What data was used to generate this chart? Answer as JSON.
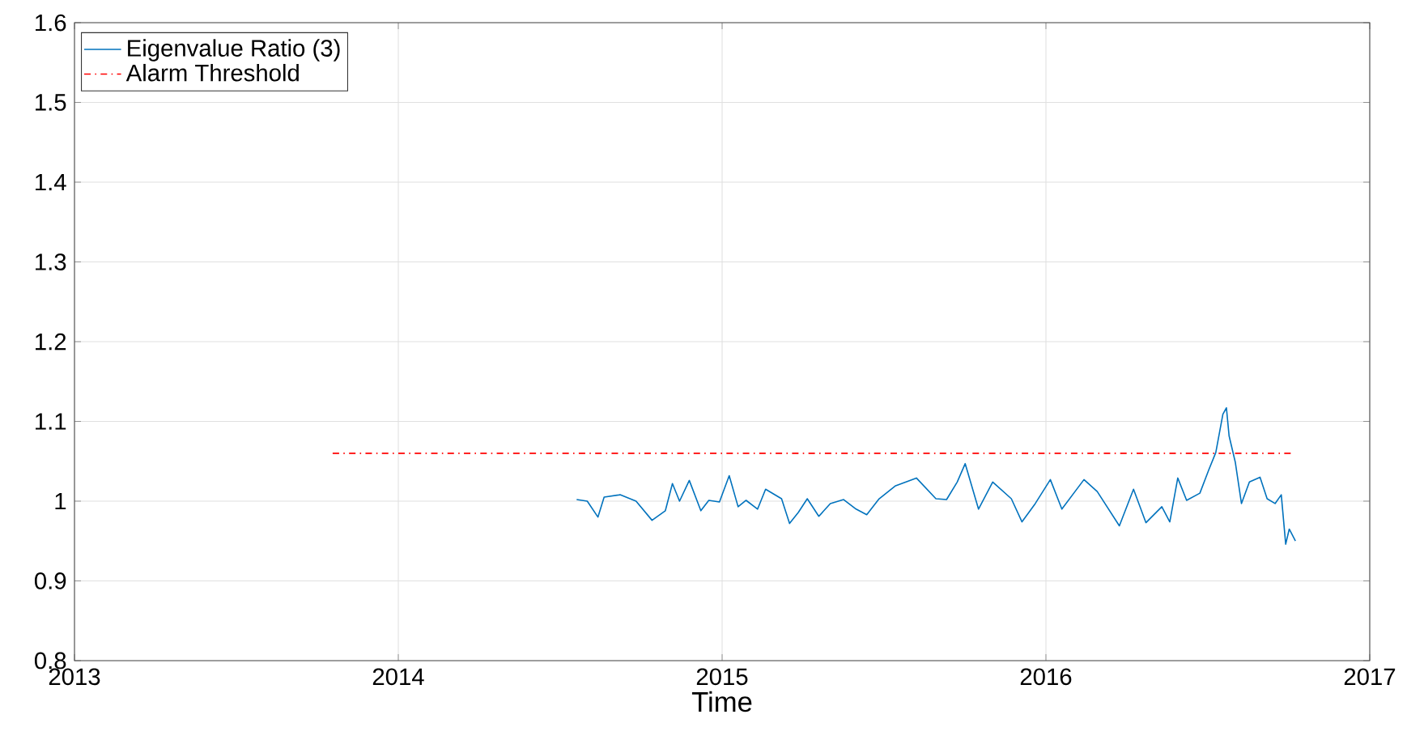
{
  "chart_data": {
    "type": "line",
    "xlabel": "Time",
    "xlim": [
      "2013",
      "2017"
    ],
    "xticks": [
      "2013",
      "2014",
      "2015",
      "2016",
      "2017"
    ],
    "ylim": [
      0.8,
      1.6
    ],
    "yticks": [
      0.8,
      0.9,
      1,
      1.1,
      1.2,
      1.3,
      1.4,
      1.5,
      1.6
    ],
    "grid": true,
    "legend": "top left",
    "marker": "none",
    "series": [
      {
        "name": "Eigenvalue Ratio (3)",
        "color": "#0072bd",
        "line_style": "solid",
        "x": [
          "2014-07-21",
          "2014-08-02",
          "2014-08-14",
          "2014-08-21",
          "2014-09-08",
          "2014-09-26",
          "2014-10-14",
          "2014-10-29",
          "2014-11-06",
          "2014-11-14",
          "2014-11-25",
          "2014-12-08",
          "2014-12-17",
          "2014-12-29",
          "2015-01-09",
          "2015-01-19",
          "2015-01-28",
          "2015-02-10",
          "2015-02-19",
          "2015-03-09",
          "2015-03-18",
          "2015-03-28",
          "2015-04-07",
          "2015-04-20",
          "2015-05-03",
          "2015-05-18",
          "2015-06-01",
          "2015-06-13",
          "2015-06-27",
          "2015-07-15",
          "2015-08-08",
          "2015-08-30",
          "2015-09-11",
          "2015-09-23",
          "2015-10-02",
          "2015-10-17",
          "2015-11-02",
          "2015-11-23",
          "2015-12-05",
          "2015-12-20",
          "2016-01-06",
          "2016-01-19",
          "2016-02-13",
          "2016-02-28",
          "2016-03-24",
          "2016-04-09",
          "2016-04-23",
          "2016-05-11",
          "2016-05-20",
          "2016-05-29",
          "2016-06-08",
          "2016-06-23",
          "2016-07-03",
          "2016-07-11",
          "2016-07-19",
          "2016-07-23",
          "2016-07-26",
          "2016-08-02",
          "2016-08-09",
          "2016-08-18",
          "2016-08-30",
          "2016-09-07",
          "2016-09-16",
          "2016-09-23",
          "2016-09-28",
          "2016-10-02",
          "2016-10-09"
        ],
        "values": [
          1.002,
          1.0,
          0.98,
          1.005,
          1.008,
          1.0,
          0.976,
          0.988,
          1.022,
          1.0,
          1.026,
          0.988,
          1.001,
          0.999,
          1.032,
          0.993,
          1.001,
          0.99,
          1.015,
          1.003,
          0.972,
          0.986,
          1.003,
          0.981,
          0.997,
          1.002,
          0.99,
          0.983,
          1.003,
          1.019,
          1.029,
          1.003,
          1.002,
          1.024,
          1.047,
          0.99,
          1.024,
          1.003,
          0.974,
          0.997,
          1.027,
          0.99,
          1.027,
          1.012,
          0.969,
          1.015,
          0.973,
          0.993,
          0.974,
          1.029,
          1.001,
          1.01,
          1.039,
          1.061,
          1.109,
          1.117,
          1.082,
          1.049,
          0.997,
          1.024,
          1.03,
          1.003,
          0.997,
          1.008,
          0.946,
          0.965,
          0.95
        ]
      },
      {
        "name": "Alarm Threshold",
        "color": "#ff0000",
        "line_style": "dashed",
        "x": [
          "2013-10-19",
          "2016-10-07"
        ],
        "values": [
          1.06,
          1.06
        ]
      }
    ]
  }
}
